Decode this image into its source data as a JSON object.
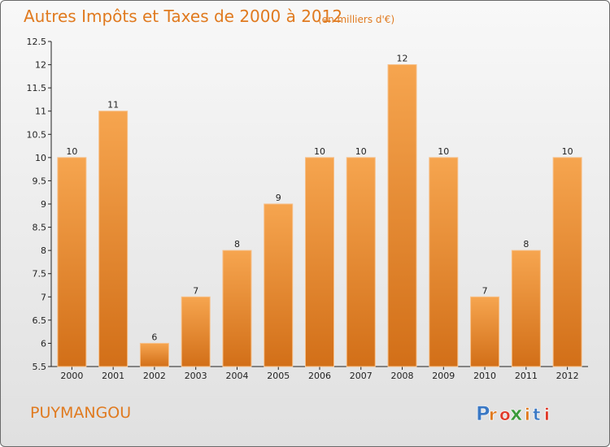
{
  "header": {
    "title": "Autres Impôts et Taxes de 2000 à 2012",
    "unit": "(en milliers d'€)"
  },
  "footer": {
    "commune": "PUYMANGOU",
    "logo_text": "Proxiti"
  },
  "colors": {
    "accent": "#e07a1f",
    "bar_top": "#f6a54f",
    "bar_bottom": "#d26f18",
    "logo_letters": [
      "#3a78c4",
      "#e07a1f",
      "#e03a2a",
      "#3a9a3a",
      "#e07a1f",
      "#3a78c4",
      "#e03a2a"
    ]
  },
  "chart_data": {
    "type": "bar",
    "title": "Autres Impôts et Taxes de 2000 à 2012",
    "subtitle": "(en milliers d'€)",
    "xlabel": "",
    "ylabel": "",
    "categories": [
      "2000",
      "2001",
      "2002",
      "2003",
      "2004",
      "2005",
      "2006",
      "2007",
      "2008",
      "2009",
      "2010",
      "2011",
      "2012"
    ],
    "values": [
      10,
      11,
      6,
      7,
      8,
      9,
      10,
      10,
      12,
      10,
      7,
      8,
      10
    ],
    "data_labels": [
      "10",
      "11",
      "6",
      "7",
      "8",
      "9",
      "10",
      "10",
      "12",
      "10",
      "7",
      "8",
      "10"
    ],
    "ylim": [
      5.5,
      12.5
    ],
    "yticks": [
      "5.5",
      "6",
      "6.5",
      "7",
      "7.5",
      "8",
      "8.5",
      "9",
      "9.5",
      "10",
      "10.5",
      "11",
      "11.5",
      "12",
      "12.5"
    ],
    "grid": false,
    "legend": "none"
  }
}
